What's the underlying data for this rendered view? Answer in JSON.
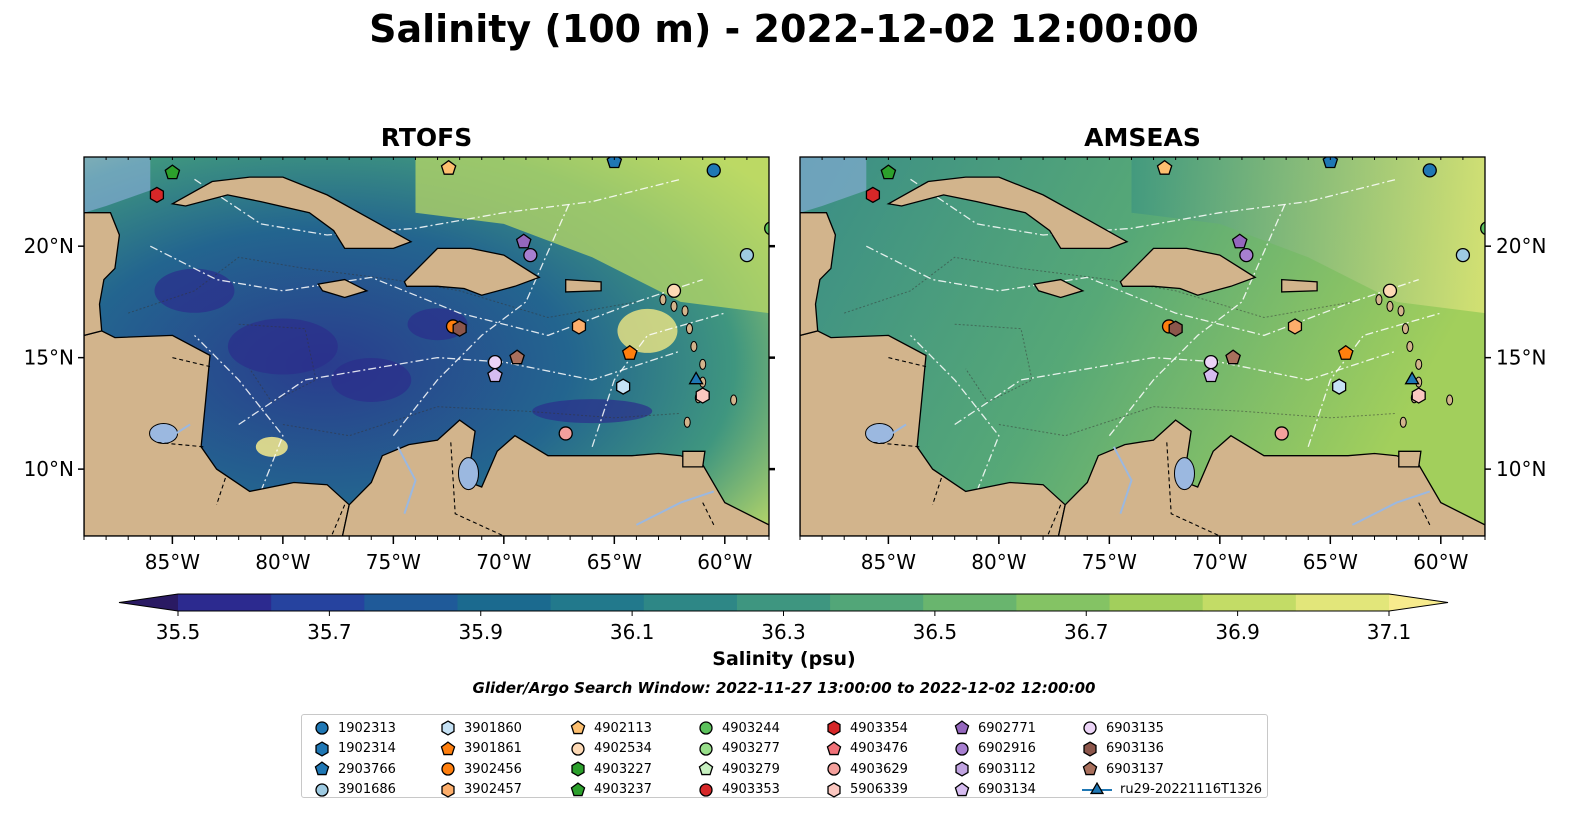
{
  "title": "Salinity (100 m) - 2022-12-02 12:00:00",
  "panels": [
    {
      "title": "RTOFS",
      "field": "rtofs"
    },
    {
      "title": "AMSEAS",
      "field": "amseas"
    }
  ],
  "axes": {
    "lon_ticks": [
      "85°W",
      "80°W",
      "75°W",
      "70°W",
      "65°W",
      "60°W"
    ],
    "lat_ticks_left": [
      "20°N",
      "15°N",
      "10°N"
    ],
    "lat_ticks_right": [
      "20°N",
      "15°N",
      "10°N"
    ]
  },
  "colorbar": {
    "label": "Salinity (psu)",
    "ticks": [
      "35.5",
      "35.7",
      "35.9",
      "36.1",
      "36.3",
      "36.5",
      "36.7",
      "36.9",
      "37.1"
    ],
    "colors": [
      "#2a1a63",
      "#2c2a8f",
      "#26439f",
      "#1f5a99",
      "#1b6a8f",
      "#22798c",
      "#2e8786",
      "#3e9680",
      "#52a678",
      "#69b56e",
      "#84c364",
      "#a2cf5c",
      "#c3dc66",
      "#e2e67a",
      "#f7eb8d"
    ]
  },
  "subtitle": "Glider/Argo Search Window: 2022-11-27 13:00:00 to 2022-12-02 12:00:00",
  "chart_data": {
    "type": "heatmap",
    "title": "Salinity (100 m) - 2022-12-02 12:00:00",
    "variable": "Salinity (psu)",
    "vmin": 35.5,
    "vmax": 37.1,
    "lon_range": [
      -89,
      -58
    ],
    "lat_range": [
      7,
      24
    ],
    "grid": true,
    "legend_position": "bottom-center",
    "platforms": [
      {
        "id": "1902313",
        "marker": "circle",
        "color": "#1f77b4",
        "lon": -60.5,
        "lat": 23.4
      },
      {
        "id": "1902314",
        "marker": "hexagon",
        "color": "#1f77b4",
        "lon": null,
        "lat": null
      },
      {
        "id": "2903766",
        "marker": "pentagon",
        "color": "#1f77b4",
        "lon": -65.0,
        "lat": 23.8
      },
      {
        "id": "3901686",
        "marker": "circle",
        "color": "#9ecae1",
        "lon": -59.0,
        "lat": 19.6
      },
      {
        "id": "3901860",
        "marker": "hexagon",
        "color": "#c6e2f5",
        "lon": -64.6,
        "lat": 13.7
      },
      {
        "id": "3901861",
        "marker": "pentagon",
        "color": "#ff7f0e",
        "lon": -64.3,
        "lat": 15.2
      },
      {
        "id": "3902456",
        "marker": "circle",
        "color": "#ff7f0e",
        "lon": -72.3,
        "lat": 16.4
      },
      {
        "id": "3902457",
        "marker": "hexagon",
        "color": "#fdae6b",
        "lon": -66.6,
        "lat": 16.4
      },
      {
        "id": "4902113",
        "marker": "pentagon",
        "color": "#fdbf6f",
        "lon": -72.5,
        "lat": 23.5
      },
      {
        "id": "4902534",
        "marker": "circle",
        "color": "#fdd9b5",
        "lon": -62.3,
        "lat": 18.0
      },
      {
        "id": "4903227",
        "marker": "hexagon",
        "color": "#2ca02c",
        "lon": null,
        "lat": null
      },
      {
        "id": "4903237",
        "marker": "pentagon",
        "color": "#2ca02c",
        "lon": -85.0,
        "lat": 23.3
      },
      {
        "id": "4903244",
        "marker": "circle",
        "color": "#5cc25c",
        "lon": -57.9,
        "lat": 20.8
      },
      {
        "id": "4903277",
        "marker": "circle",
        "color": "#98df8a",
        "lon": null,
        "lat": null
      },
      {
        "id": "4903279",
        "marker": "pentagon",
        "color": "#c7f0c0",
        "lon": null,
        "lat": null
      },
      {
        "id": "4903353",
        "marker": "circle",
        "color": "#d62728",
        "lon": null,
        "lat": null
      },
      {
        "id": "4903354",
        "marker": "hexagon",
        "color": "#d62728",
        "lon": -85.7,
        "lat": 22.3
      },
      {
        "id": "4903476",
        "marker": "pentagon",
        "color": "#f07178",
        "lon": null,
        "lat": null
      },
      {
        "id": "4903629",
        "marker": "circle",
        "color": "#f4a09c",
        "lon": -67.2,
        "lat": 11.6
      },
      {
        "id": "5906339",
        "marker": "hexagon",
        "color": "#fbc7c0",
        "lon": -61.0,
        "lat": 13.3
      },
      {
        "id": "6902771",
        "marker": "pentagon",
        "color": "#9467bd",
        "lon": -69.1,
        "lat": 20.2
      },
      {
        "id": "6902916",
        "marker": "circle",
        "color": "#a77fd0",
        "lon": -68.8,
        "lat": 19.6
      },
      {
        "id": "6903112",
        "marker": "hexagon",
        "color": "#c0a3e0",
        "lon": null,
        "lat": null
      },
      {
        "id": "6903134",
        "marker": "pentagon",
        "color": "#d6bcf0",
        "lon": -70.4,
        "lat": 14.2
      },
      {
        "id": "6903135",
        "marker": "circle",
        "color": "#ecd4f7",
        "lon": -70.4,
        "lat": 14.8
      },
      {
        "id": "6903136",
        "marker": "hexagon",
        "color": "#8c564b",
        "lon": -72.0,
        "lat": 16.3
      },
      {
        "id": "6903137",
        "marker": "pentagon",
        "color": "#a9705d",
        "lon": -69.4,
        "lat": 15.0
      },
      {
        "id": "ru29-20221116T1326",
        "marker": "triangle",
        "color": "#1f77b4",
        "lon": -61.3,
        "lat": 14.0
      }
    ]
  }
}
